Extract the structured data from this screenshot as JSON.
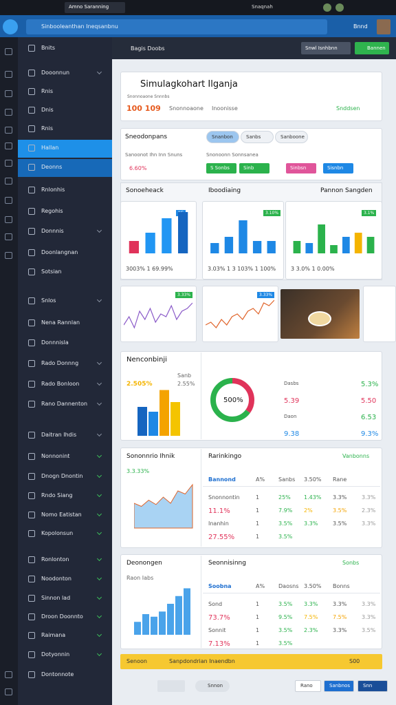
{
  "topbar": {
    "tab": "Amno Saranning",
    "account": "Snaqnah"
  },
  "search": {
    "placeholder": "Sinbooleanthan Ineqsanbnu",
    "button": "Bnnd"
  },
  "sidebar": [
    "Bnits",
    "Dooonnun",
    "Rnis",
    "Dnis",
    "Rnis",
    "Hallan",
    "Deonns",
    "Rnlonhis",
    "Regohis",
    "Donnnis",
    "Doonlangnan",
    "Sotsian",
    "Snlos",
    "Nena Rannlan",
    "Donnnisla",
    "Rado Donnng",
    "Rado Bonloon",
    "Rano Dannenton",
    "Daitran Ihdis",
    "Nonnonint",
    "Dnogn Dnontin",
    "Rndo Siang",
    "Nomo Eatistan",
    "Kopolonsun",
    "Ronlonton",
    "Noodonton",
    "Sinnon lad",
    "Droon Doonnto",
    "Raimana",
    "Dotyonnin",
    "Dontonnote"
  ],
  "toolbar": {
    "title": "Bagis Doobs",
    "secondary": "Snwl Isnhbnn",
    "primary": "Bannen"
  },
  "summary": {
    "title": "Simulagkohart Ilganja",
    "subtitle": "Snonnoaone Snnnbs",
    "value": "100 109",
    "tag1": "Snonnoaone",
    "tag2": "Inoonisse",
    "link": "Snddsen"
  },
  "filters": {
    "title": "Sneodonpans",
    "tabs": [
      "Snanbon",
      "Sanbs",
      "Sanboone"
    ],
    "line1": "Sanoonot Ihn Inn Snuns",
    "line2": "Snonoonn Sonnsanea",
    "rate": "6.60%",
    "chips": [
      {
        "label": "S Sonbs",
        "color": "#2bb24c"
      },
      {
        "label": "Sinb",
        "color": "#2bb24c"
      },
      {
        "label": "Sinbsn",
        "color": "#e0559a"
      },
      {
        "label": "Sisnbn",
        "color": "#1e88e5"
      }
    ]
  },
  "bar_cards": {
    "titles": [
      "Sonoeheack",
      "Iboodiaing",
      "Pannon Sangden"
    ],
    "cards": [
      {
        "badge": "IIG",
        "values": [
          30,
          50,
          85,
          100
        ],
        "colors": [
          "#e0335a",
          "#2196f3",
          "#2196f3",
          "#1565c0"
        ],
        "footer": "3003% 1 69.99%"
      },
      {
        "badge": "3.10%",
        "values": [
          25,
          40,
          80,
          30,
          30
        ],
        "colors": [
          "#1e88e5",
          "#1e88e5",
          "#1e88e5",
          "#1e88e5",
          "#1e88e5"
        ],
        "footer": "3.03% 1 3 103% 1 100%"
      },
      {
        "badge": "3.1%",
        "values": [
          30,
          25,
          70,
          20,
          40,
          50,
          40
        ],
        "colors": [
          "#2bb24c",
          "#1e88e5",
          "#2bb24c",
          "#2bb24c",
          "#1e88e5",
          "#f4b400",
          "#2bb24c"
        ],
        "footer": "3 3.0% 1 0.00%"
      }
    ]
  },
  "line_cards": [
    {
      "badge": "3.33%",
      "values": [
        20,
        35,
        15,
        45,
        30,
        50,
        25,
        40,
        35,
        55,
        30,
        45,
        50,
        60
      ]
    },
    {
      "badge": "3.33%",
      "values": [
        20,
        25,
        15,
        30,
        20,
        35,
        40,
        30,
        45,
        50,
        40,
        60,
        55,
        65
      ]
    }
  ],
  "breakdown": {
    "title": "Nenconbinji",
    "stat": "2.505%",
    "stat_label": "Sanb",
    "stat2": "2.55%",
    "values": [
      60,
      50,
      95,
      70
    ],
    "colors": [
      "#1565c0",
      "#1e88e5",
      "#f4a300",
      "#f4c400"
    ],
    "donut": {
      "label": "500%",
      "values": [
        35,
        65
      ],
      "colors": [
        "#e0335a",
        "#2bb24c"
      ]
    },
    "rows": [
      {
        "label": "Dasbs",
        "value": "5.3%",
        "color": "#2bb24c"
      },
      {
        "label": "5.39",
        "value": "5.50",
        "color": "#e0335a"
      },
      {
        "label": "Daon",
        "value": "6.53",
        "color": "#2bb24c"
      },
      {
        "label": "9.38",
        "value": "9.3%",
        "color": "#1e88e5"
      }
    ]
  },
  "tables": [
    {
      "chart_title": "Sononnrio Ihnik",
      "chart_stat": "3.3.33%",
      "chart_values": [
        40,
        35,
        45,
        38,
        50,
        40,
        60,
        55,
        70
      ],
      "chart_kind": "area",
      "title": "Rarinkingo",
      "link": "Vanbonns",
      "header": [
        "Bannond",
        "A%",
        "Sanbs",
        "3.50%",
        "Rane"
      ],
      "rows": [
        [
          "Snonnontin",
          "1",
          "25%",
          "1.43%",
          "3.3%",
          "3.3%"
        ],
        [
          "11.1%",
          "1",
          "7.9%",
          "2%",
          "3.5%",
          "2.3%"
        ],
        [
          "Inanhin",
          "1",
          "3.5%",
          "3.3%",
          "3.5%",
          "3.3%"
        ],
        [
          "27.55%",
          "1",
          "3.5%"
        ]
      ]
    },
    {
      "chart_title": "Deonongen",
      "chart_stat": "Raon Iabs",
      "chart_values": [
        25,
        40,
        35,
        45,
        60,
        75,
        90
      ],
      "chart_kind": "bar",
      "title": "Seonnisinng",
      "link": "Sonbs",
      "header": [
        "Soobna",
        "A%",
        "Daosns",
        "3.50%",
        "Bonns"
      ],
      "rows": [
        [
          "Sond",
          "1",
          "3.5%",
          "3.3%",
          "3.3%",
          "3.3%"
        ],
        [
          "73.7%",
          "1",
          "9.5%",
          "7.5%",
          "7.5%",
          "3.3%"
        ],
        [
          "Sonnit",
          "1",
          "3.5%",
          "2.3%",
          "3.3%",
          "3.5%"
        ],
        [
          "7.13%",
          "1",
          "3.5%"
        ]
      ]
    }
  ],
  "banner": {
    "text": "Senoon",
    "detail": "Sanpdondrian Inaendbn",
    "code": "S00"
  },
  "footer": {
    "page": "Snnon",
    "cancel": "Rano",
    "save": "Sanbnos",
    "ok": "Snn"
  }
}
